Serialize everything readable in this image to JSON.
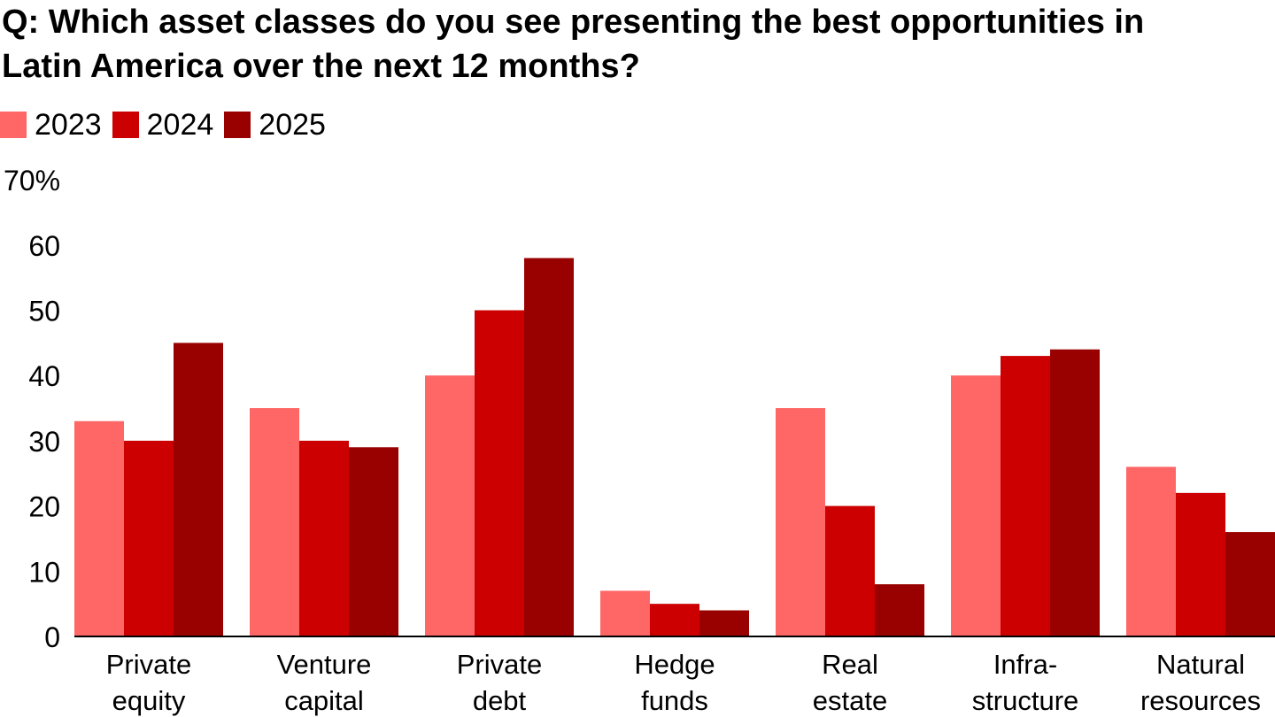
{
  "title_lines": [
    "Q: Which asset classes do you see presenting the best opportunities in",
    "Latin America over the next 12 months?"
  ],
  "chart_data": {
    "type": "bar",
    "title": "Q: Which asset classes do you see presenting the best opportunities in Latin America over the next 12 months?",
    "categories": [
      [
        "Private",
        "equity"
      ],
      [
        "Venture",
        "capital"
      ],
      [
        "Private",
        "debt"
      ],
      [
        "Hedge",
        "funds"
      ],
      [
        "Real",
        "estate"
      ],
      [
        "Infra-",
        "structure"
      ],
      [
        "Natural",
        "resources"
      ]
    ],
    "series": [
      {
        "name": "2023",
        "color": "#ff6666",
        "values": [
          33,
          35,
          40,
          7,
          35,
          40,
          26
        ]
      },
      {
        "name": "2024",
        "color": "#cc0000",
        "values": [
          30,
          30,
          50,
          5,
          20,
          43,
          22
        ]
      },
      {
        "name": "2025",
        "color": "#990000",
        "values": [
          45,
          29,
          58,
          4,
          8,
          44,
          16
        ]
      }
    ],
    "ylim": [
      0,
      70
    ],
    "yticks": [
      0,
      10,
      20,
      30,
      40,
      50,
      60,
      70
    ],
    "ytick_labels": [
      "0",
      "10",
      "20",
      "30",
      "40",
      "50",
      "60",
      "70%"
    ],
    "xlabel": "",
    "ylabel": "",
    "grid": false,
    "legend_position": "top-left"
  }
}
